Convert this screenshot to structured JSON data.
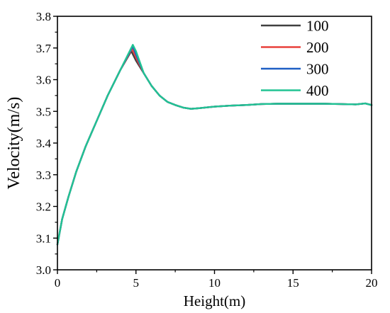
{
  "chart_data": {
    "type": "line",
    "title": "",
    "xlabel": "Height(m)",
    "ylabel": "Velocity(m/s)",
    "xlim": [
      0,
      20
    ],
    "ylim": [
      3.0,
      3.8
    ],
    "xticks": [
      "0",
      "5",
      "10",
      "15",
      "20"
    ],
    "yticks": [
      "3.0",
      "3.1",
      "3.2",
      "3.3",
      "3.4",
      "3.5",
      "3.6",
      "3.7",
      "3.8"
    ],
    "grid": false,
    "legend_position": "top-right",
    "series": [
      {
        "name": "100",
        "color": "#404040",
        "x": [
          0,
          0.3,
          0.7,
          1.2,
          1.8,
          2.5,
          3.2,
          4.0,
          4.7,
          5.0,
          5.5,
          6.0,
          6.5,
          7.0,
          7.5,
          8.0,
          8.5,
          9.0,
          10.0,
          11.0,
          12.0,
          13.0,
          14.0,
          15.0,
          16.0,
          17.0,
          18.0,
          19.0,
          19.6,
          20.0
        ],
        "y": [
          3.08,
          3.16,
          3.23,
          3.31,
          3.39,
          3.47,
          3.55,
          3.63,
          3.69,
          3.66,
          3.62,
          3.58,
          3.55,
          3.53,
          3.52,
          3.512,
          3.508,
          3.51,
          3.515,
          3.518,
          3.52,
          3.523,
          3.524,
          3.524,
          3.524,
          3.524,
          3.523,
          3.522,
          3.525,
          3.52
        ]
      },
      {
        "name": "200",
        "color": "#e8413c",
        "x": [
          0,
          0.3,
          0.7,
          1.2,
          1.8,
          2.5,
          3.2,
          4.0,
          4.75,
          5.0,
          5.5,
          6.0,
          6.5,
          7.0,
          7.5,
          8.0,
          8.5,
          9.0,
          10.0,
          11.0,
          12.0,
          13.0,
          14.0,
          15.0,
          16.0,
          17.0,
          18.0,
          19.0,
          19.6,
          20.0
        ],
        "y": [
          3.08,
          3.16,
          3.23,
          3.31,
          3.39,
          3.47,
          3.55,
          3.63,
          3.698,
          3.67,
          3.62,
          3.58,
          3.55,
          3.53,
          3.52,
          3.512,
          3.508,
          3.51,
          3.515,
          3.518,
          3.52,
          3.523,
          3.524,
          3.524,
          3.524,
          3.524,
          3.523,
          3.522,
          3.525,
          3.52
        ]
      },
      {
        "name": "300",
        "color": "#1f5fc4",
        "x": [
          0,
          0.3,
          0.7,
          1.2,
          1.8,
          2.5,
          3.2,
          4.0,
          4.8,
          5.0,
          5.5,
          6.0,
          6.5,
          7.0,
          7.5,
          8.0,
          8.5,
          9.0,
          10.0,
          11.0,
          12.0,
          13.0,
          14.0,
          15.0,
          16.0,
          17.0,
          18.0,
          19.0,
          19.6,
          20.0
        ],
        "y": [
          3.08,
          3.16,
          3.23,
          3.31,
          3.39,
          3.47,
          3.55,
          3.63,
          3.706,
          3.68,
          3.62,
          3.58,
          3.55,
          3.53,
          3.52,
          3.512,
          3.508,
          3.51,
          3.515,
          3.518,
          3.52,
          3.523,
          3.524,
          3.524,
          3.524,
          3.524,
          3.523,
          3.522,
          3.525,
          3.52
        ]
      },
      {
        "name": "400",
        "color": "#21c393",
        "x": [
          0,
          0.3,
          0.7,
          1.2,
          1.8,
          2.5,
          3.2,
          4.0,
          4.8,
          5.0,
          5.5,
          6.0,
          6.5,
          7.0,
          7.5,
          8.0,
          8.5,
          9.0,
          10.0,
          11.0,
          12.0,
          13.0,
          14.0,
          15.0,
          16.0,
          17.0,
          18.0,
          19.0,
          19.6,
          20.0
        ],
        "y": [
          3.08,
          3.16,
          3.23,
          3.31,
          3.39,
          3.47,
          3.55,
          3.63,
          3.71,
          3.69,
          3.62,
          3.58,
          3.55,
          3.53,
          3.52,
          3.512,
          3.508,
          3.51,
          3.515,
          3.518,
          3.52,
          3.523,
          3.524,
          3.524,
          3.524,
          3.524,
          3.523,
          3.522,
          3.525,
          3.52
        ]
      }
    ]
  }
}
